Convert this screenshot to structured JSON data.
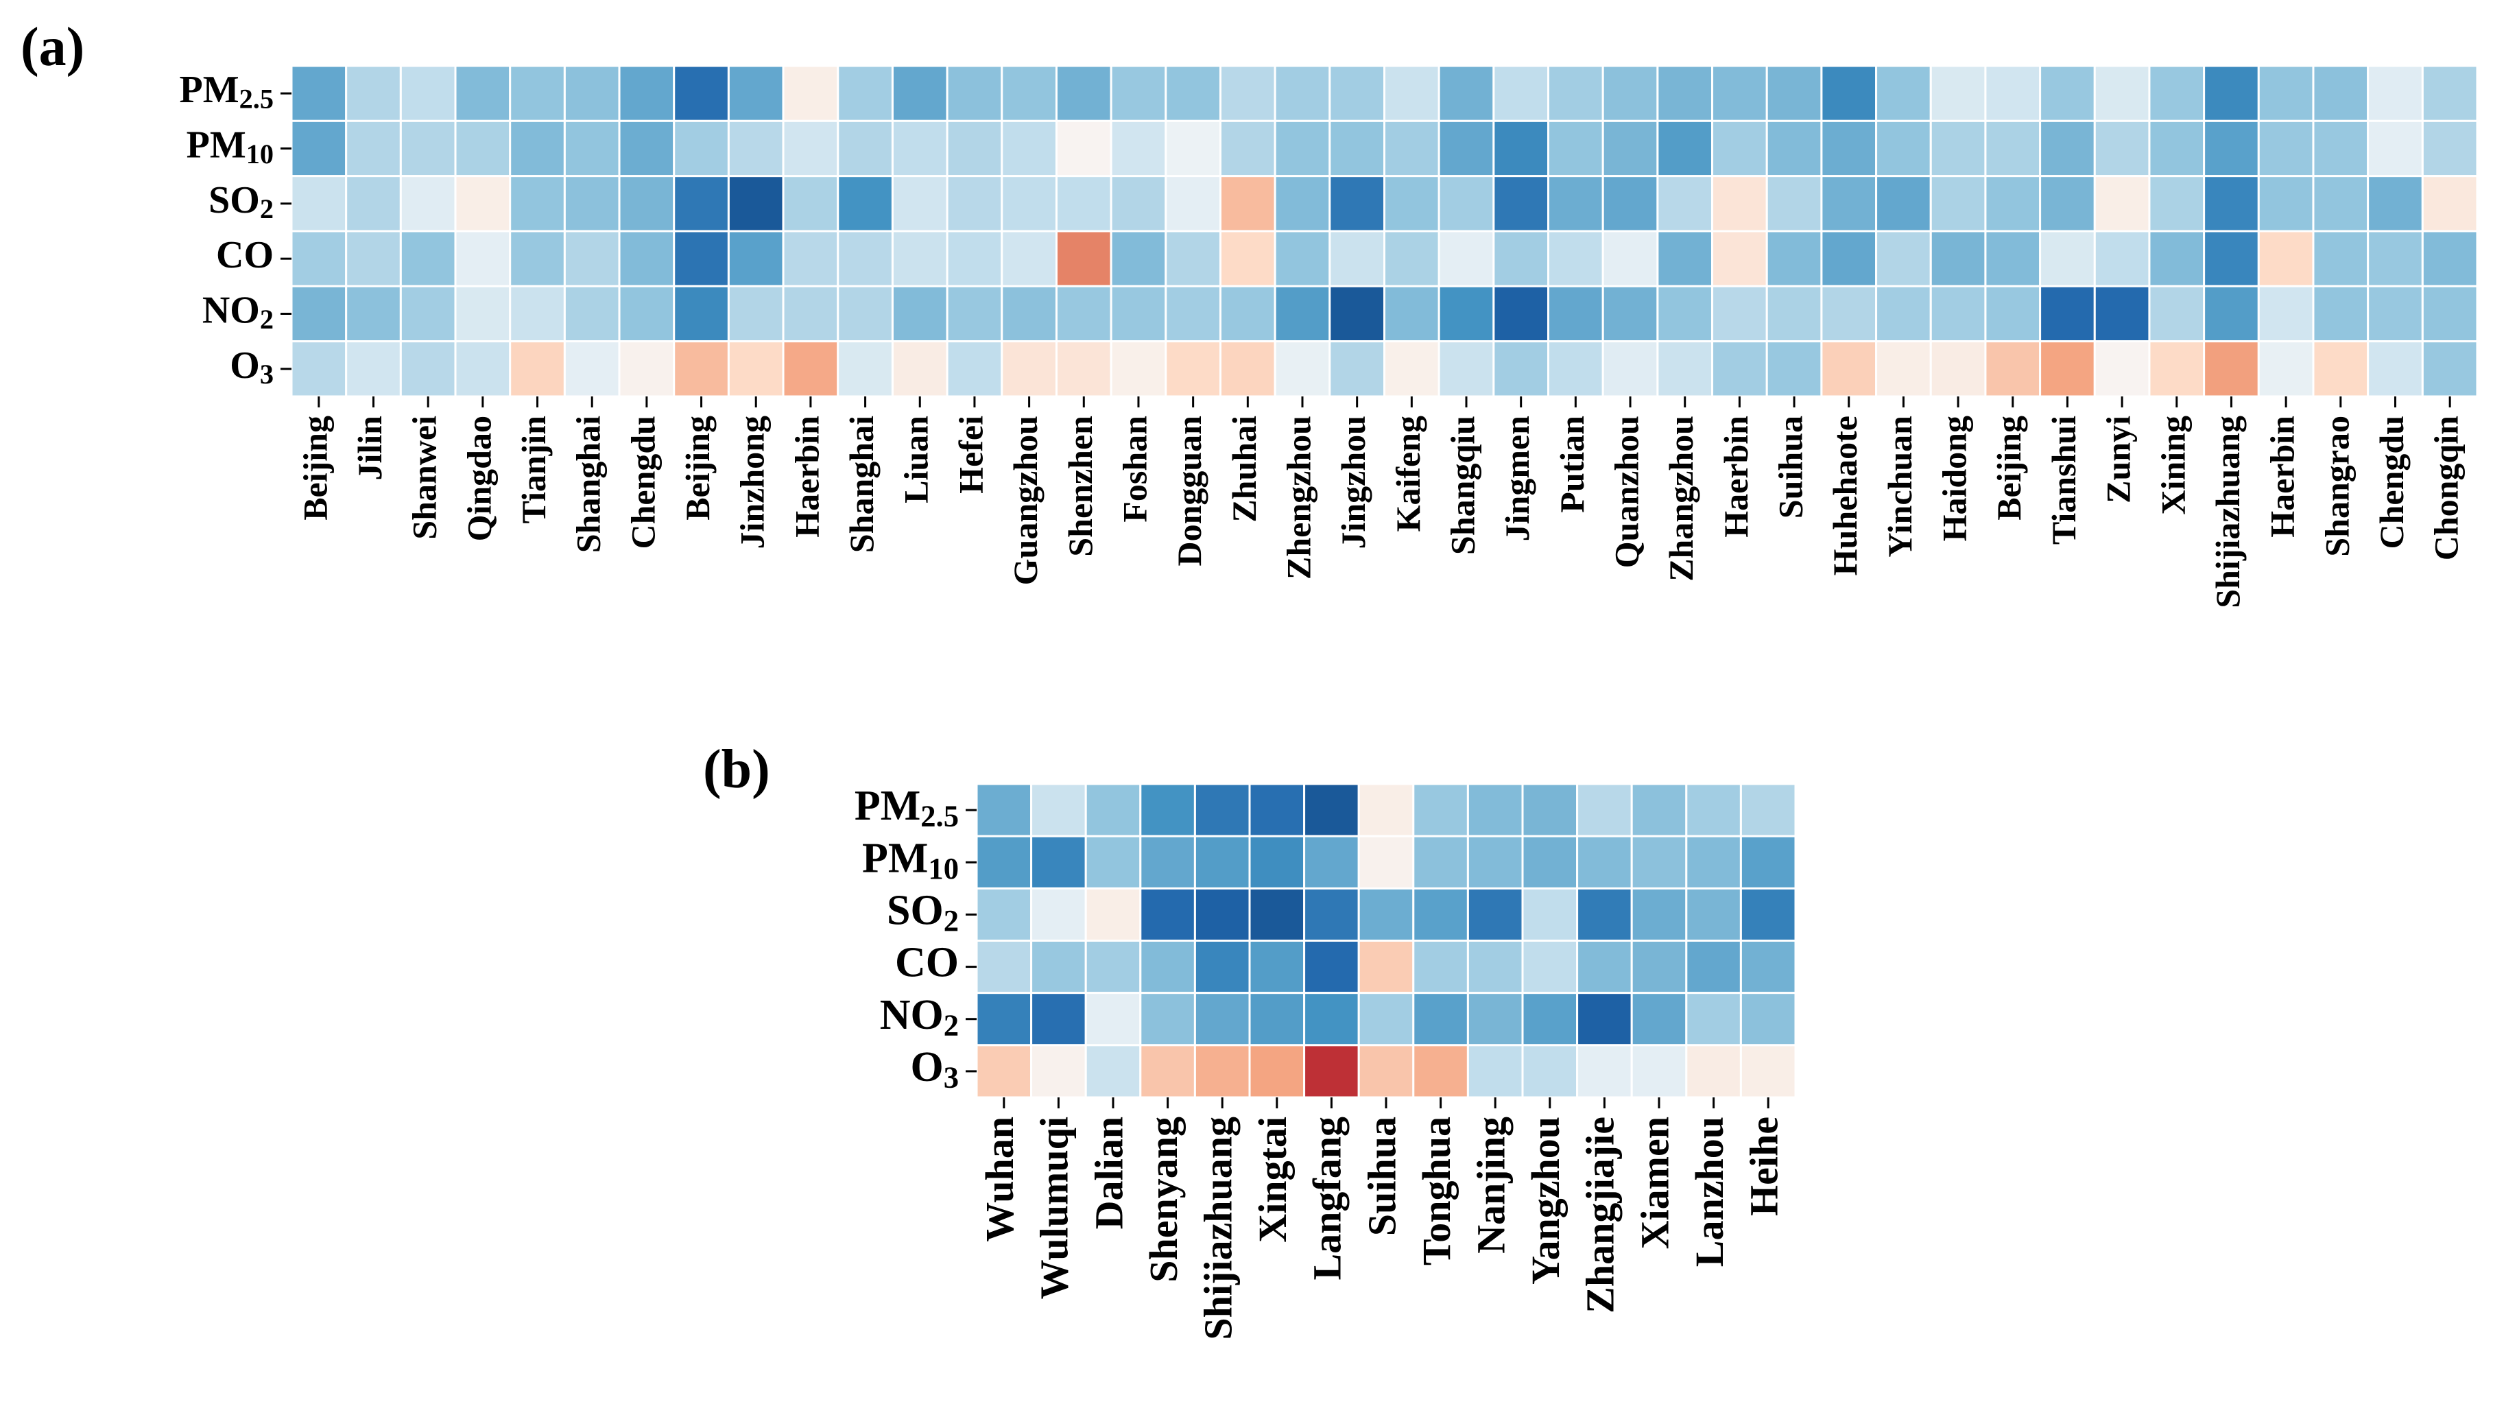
{
  "chart_data": [
    {
      "type": "heatmap",
      "panel_label": "(a)",
      "title": "",
      "xlabel": "",
      "ylabel": "",
      "rows": [
        {
          "base": "PM",
          "sub": "2.5"
        },
        {
          "base": "PM",
          "sub": "10"
        },
        {
          "base": "SO",
          "sub": "2"
        },
        {
          "base": "CO",
          "sub": ""
        },
        {
          "base": "NO",
          "sub": "2"
        },
        {
          "base": "O",
          "sub": "3"
        }
      ],
      "columns": [
        "Beijing",
        "Jilin",
        "Shanwei",
        "Qingdao",
        "Tianjin",
        "Shanghai",
        "Chengdu",
        "Beijing",
        "Jinzhong",
        "Haerbin",
        "Shanghai",
        "Liuan",
        "Hefei",
        "Guangzhou",
        "Shenzhen",
        "Foshan",
        "Dongguan",
        "Zhuhai",
        "Zhengzhou",
        "Jingzhou",
        "Kaifeng",
        "Shangqiu",
        "Jingmen",
        "Putian",
        "Quanzhou",
        "Zhangzhou",
        "Haerbin",
        "Suihua",
        "Huhehaote",
        "Yinchuan",
        "Haidong",
        "Beijing",
        "Tianshui",
        "Zunyi",
        "Xining",
        "Shijiazhuang",
        "Haerbin",
        "Shangrao",
        "Chengdu",
        "Chongqin"
      ],
      "value_range": [
        -1,
        1
      ],
      "colormap": "RdBu (negative = blue, positive = red)",
      "values": [
        [
          -0.45,
          -0.2,
          -0.15,
          -0.35,
          -0.3,
          -0.32,
          -0.45,
          -0.75,
          -0.45,
          0.05,
          -0.25,
          -0.45,
          -0.32,
          -0.3,
          -0.4,
          -0.28,
          -0.3,
          -0.18,
          -0.25,
          -0.25,
          -0.12,
          -0.4,
          -0.15,
          -0.25,
          -0.32,
          -0.38,
          -0.35,
          -0.38,
          -0.6,
          -0.3,
          -0.08,
          -0.1,
          -0.28,
          -0.08,
          -0.28,
          -0.6,
          -0.3,
          -0.32,
          -0.06,
          -0.22
        ],
        [
          -0.45,
          -0.2,
          -0.2,
          -0.22,
          -0.35,
          -0.3,
          -0.42,
          -0.25,
          -0.18,
          -0.1,
          -0.2,
          -0.15,
          -0.2,
          -0.15,
          0.02,
          -0.1,
          -0.03,
          -0.2,
          -0.3,
          -0.3,
          -0.25,
          -0.45,
          -0.6,
          -0.3,
          -0.38,
          -0.5,
          -0.25,
          -0.35,
          -0.42,
          -0.3,
          -0.22,
          -0.22,
          -0.38,
          -0.2,
          -0.3,
          -0.48,
          -0.28,
          -0.28,
          -0.05,
          -0.2
        ],
        [
          -0.12,
          -0.2,
          -0.06,
          0.05,
          -0.3,
          -0.32,
          -0.38,
          -0.7,
          -0.85,
          -0.22,
          -0.55,
          -0.1,
          -0.18,
          -0.15,
          -0.15,
          -0.2,
          -0.05,
          0.3,
          -0.35,
          -0.7,
          -0.3,
          -0.25,
          -0.7,
          -0.42,
          -0.45,
          -0.18,
          0.1,
          -0.2,
          -0.4,
          -0.45,
          -0.22,
          -0.3,
          -0.38,
          0.05,
          -0.22,
          -0.62,
          -0.3,
          -0.3,
          -0.4,
          0.08
        ],
        [
          -0.25,
          -0.2,
          -0.3,
          -0.05,
          -0.28,
          -0.2,
          -0.35,
          -0.72,
          -0.48,
          -0.18,
          -0.18,
          -0.12,
          -0.15,
          -0.1,
          0.55,
          -0.35,
          -0.2,
          0.15,
          -0.3,
          -0.12,
          -0.22,
          -0.05,
          -0.25,
          -0.15,
          -0.05,
          -0.4,
          0.1,
          -0.35,
          -0.45,
          -0.2,
          -0.38,
          -0.35,
          -0.08,
          -0.15,
          -0.35,
          -0.62,
          0.15,
          -0.3,
          -0.28,
          -0.35
        ],
        [
          -0.38,
          -0.32,
          -0.25,
          -0.08,
          -0.12,
          -0.22,
          -0.3,
          -0.6,
          -0.2,
          -0.2,
          -0.2,
          -0.35,
          -0.28,
          -0.32,
          -0.28,
          -0.28,
          -0.25,
          -0.28,
          -0.5,
          -0.85,
          -0.35,
          -0.55,
          -0.82,
          -0.45,
          -0.4,
          -0.3,
          -0.18,
          -0.22,
          -0.2,
          -0.25,
          -0.25,
          -0.28,
          -0.78,
          -0.78,
          -0.2,
          -0.5,
          -0.1,
          -0.3,
          -0.28,
          -0.3
        ],
        [
          -0.18,
          -0.1,
          -0.18,
          -0.12,
          0.18,
          -0.05,
          0.03,
          0.3,
          0.15,
          0.38,
          -0.08,
          0.06,
          -0.15,
          0.1,
          0.1,
          0.04,
          0.15,
          0.18,
          -0.04,
          -0.2,
          0.04,
          -0.12,
          -0.25,
          -0.15,
          -0.06,
          -0.12,
          -0.25,
          -0.28,
          0.2,
          0.05,
          0.06,
          0.25,
          0.4,
          0.02,
          0.15,
          0.42,
          -0.04,
          0.15,
          -0.1,
          -0.28
        ]
      ]
    },
    {
      "type": "heatmap",
      "panel_label": "(b)",
      "title": "",
      "xlabel": "",
      "ylabel": "",
      "rows": [
        {
          "base": "PM",
          "sub": "2.5"
        },
        {
          "base": "PM",
          "sub": "10"
        },
        {
          "base": "SO",
          "sub": "2"
        },
        {
          "base": "CO",
          "sub": ""
        },
        {
          "base": "NO",
          "sub": "2"
        },
        {
          "base": "O",
          "sub": "3"
        }
      ],
      "columns": [
        "Wuhan",
        "Wulumuqi",
        "Dalian",
        "Shenyang",
        "Shijiazhuang",
        "Xingtai",
        "Langfang",
        "Suihua",
        "Tonghua",
        "Nanjing",
        "Yangzhou",
        "Zhangjiajie",
        "Xiamen",
        "Lanzhou",
        "Heihe"
      ],
      "value_range": [
        -1,
        1
      ],
      "colormap": "RdBu (negative = blue, positive = red)",
      "values": [
        [
          -0.42,
          -0.12,
          -0.3,
          -0.55,
          -0.7,
          -0.75,
          -0.85,
          0.05,
          -0.28,
          -0.35,
          -0.38,
          -0.18,
          -0.32,
          -0.25,
          -0.2
        ],
        [
          -0.5,
          -0.62,
          -0.3,
          -0.45,
          -0.5,
          -0.58,
          -0.45,
          0.03,
          -0.32,
          -0.35,
          -0.4,
          -0.35,
          -0.32,
          -0.35,
          -0.48
        ],
        [
          -0.25,
          -0.05,
          0.05,
          -0.78,
          -0.82,
          -0.85,
          -0.7,
          -0.42,
          -0.48,
          -0.7,
          -0.15,
          -0.68,
          -0.42,
          -0.38,
          -0.65
        ],
        [
          -0.18,
          -0.28,
          -0.25,
          -0.35,
          -0.62,
          -0.5,
          -0.78,
          0.22,
          -0.25,
          -0.25,
          -0.15,
          -0.35,
          -0.38,
          -0.45,
          -0.4
        ],
        [
          -0.65,
          -0.75,
          -0.05,
          -0.32,
          -0.45,
          -0.5,
          -0.55,
          -0.25,
          -0.48,
          -0.38,
          -0.48,
          -0.82,
          -0.45,
          -0.25,
          -0.32
        ],
        [
          0.22,
          0.03,
          -0.12,
          0.25,
          0.35,
          0.4,
          0.9,
          0.25,
          0.35,
          -0.15,
          -0.15,
          -0.05,
          -0.05,
          0.06,
          0.05
        ]
      ]
    }
  ]
}
